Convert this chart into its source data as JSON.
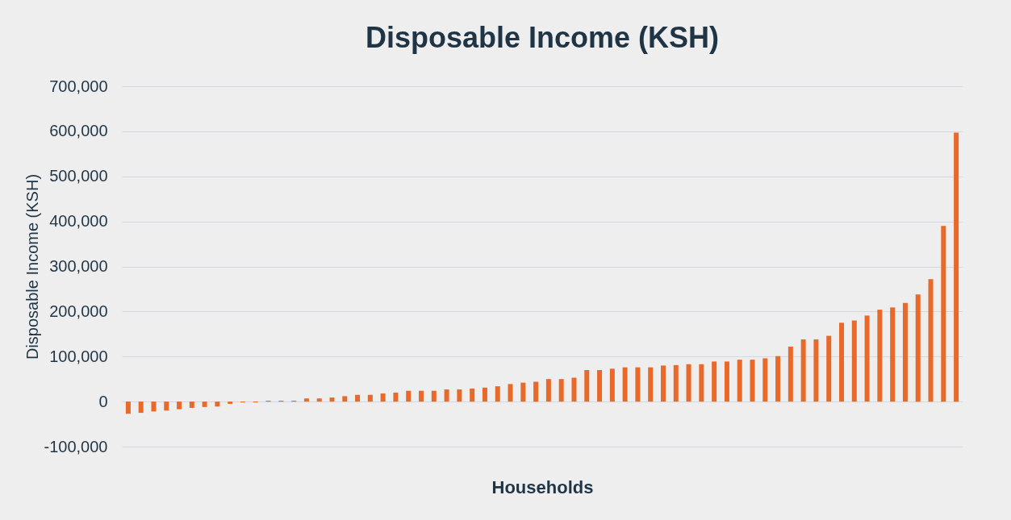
{
  "chart_data": {
    "type": "bar",
    "title": "Disposable Income (KSH)",
    "xlabel": "Households",
    "ylabel": "Disposable Income (KSH)",
    "categories": [
      null,
      null,
      null,
      null,
      null,
      null,
      null,
      null,
      null,
      null,
      null,
      null,
      null,
      null,
      null,
      null,
      null,
      null,
      null,
      null,
      null,
      null,
      null,
      null,
      null,
      null,
      null,
      null,
      null,
      null,
      null,
      null,
      null,
      null,
      null,
      null,
      null,
      null,
      null,
      null,
      null,
      null,
      null,
      null,
      null,
      null,
      null,
      null,
      null,
      null,
      null,
      null,
      null,
      null,
      null,
      null,
      null,
      null,
      null,
      null,
      null,
      null,
      null,
      null,
      null,
      null
    ],
    "series": [
      {
        "color": "#e8692a",
        "values": [
          -27000,
          -25000,
          -22000,
          -20000,
          -17000,
          -14000,
          -12000,
          -11000,
          -5000,
          -2000,
          -2000,
          2000,
          2000,
          2000,
          7000,
          7000,
          9000,
          12000,
          15000,
          15000,
          18000,
          20000,
          24000,
          24000,
          24000,
          27000,
          27000,
          29000,
          31000,
          34000,
          39000,
          42000,
          44000,
          50000,
          50000,
          53000,
          70000,
          70000,
          73000,
          76000,
          76000,
          76000,
          80000,
          81000,
          83000,
          83000,
          89000,
          89000,
          93000,
          93000,
          96000,
          101000,
          122000,
          138000,
          138000,
          146000,
          175000,
          180000,
          191000,
          204000,
          209000,
          219000,
          238000,
          272000,
          390000,
          597000
        ]
      }
    ],
    "ylim": [
      -100000,
      700000
    ],
    "yticks": [
      {
        "value": -100000,
        "label": "-100,000"
      },
      0,
      {
        "value": 100000,
        "label": "100,000"
      },
      {
        "value": 200000,
        "label": "200,000"
      },
      {
        "value": 300000,
        "label": "300,000"
      },
      {
        "value": 400000,
        "label": "400,000"
      },
      {
        "value": 500000,
        "label": "500,000"
      },
      {
        "value": 600000,
        "label": "600,000"
      },
      {
        "value": 700000,
        "label": "700,000"
      }
    ],
    "grid": "y",
    "tick_labels": "y"
  }
}
